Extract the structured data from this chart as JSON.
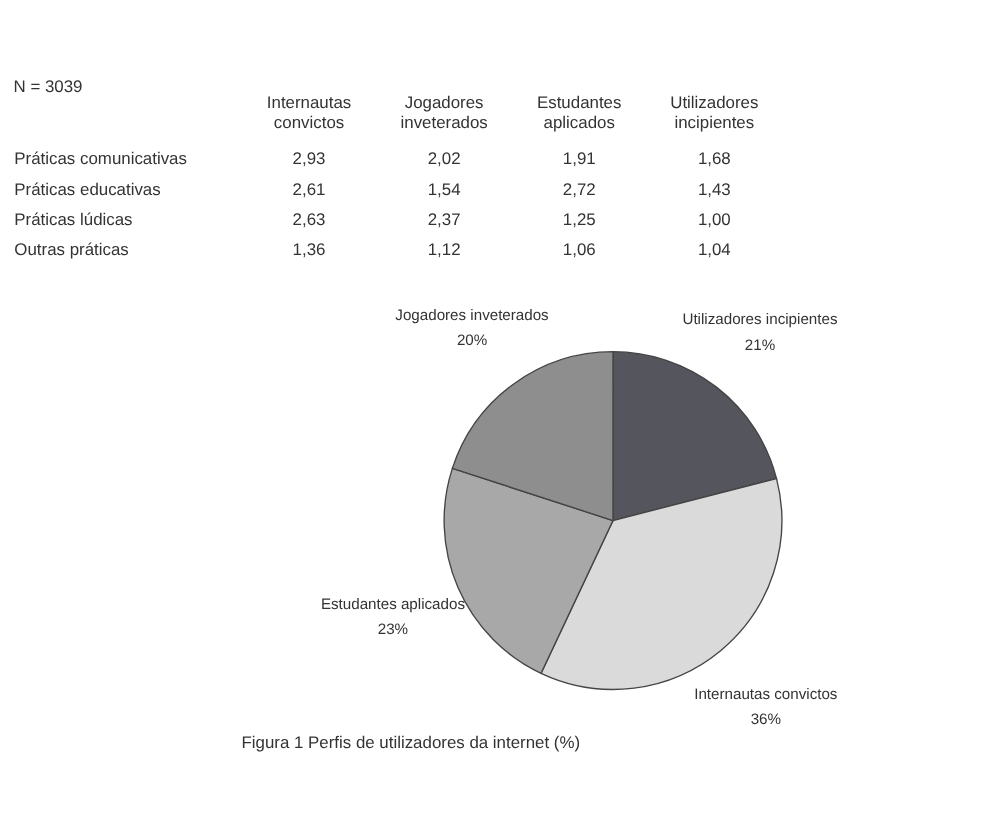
{
  "chart_data": [
    {
      "type": "other",
      "categories": [
        "Internautas convictos",
        "Jogadores inveterados",
        "Estudantes aplicados",
        "Utilizadores incipientes"
      ],
      "y_categories": [
        "Práticas comunicativas",
        "Práticas educativas",
        "Práticas lúdicas",
        "Outras práticas"
      ],
      "cell_labels": [
        [
          "2,93",
          "2,02",
          "1,91",
          "1,68"
        ],
        [
          "2,61",
          "1,54",
          "2,72",
          "1,43"
        ],
        [
          "2,63",
          "2,37",
          "1,25",
          "1,00"
        ],
        [
          "1,36",
          "1,12",
          "1,06",
          "1,04"
        ]
      ],
      "annotations": [
        "N = 3039"
      ]
    },
    {
      "type": "pie",
      "title": "Figura 1     Perfis de utilizadores da internet (%)",
      "categories": [
        "Utilizadores incipientes",
        "Internautas convictos",
        "Estudantes aplicados",
        "Jogadores inveterados"
      ],
      "values": [
        21,
        36,
        23,
        20
      ],
      "value_labels": [
        "21%",
        "36%",
        "23%",
        "20%"
      ],
      "colors": [
        "#55555d",
        "#dadada",
        "#a8a8a8",
        "#8e8e8e"
      ],
      "legend": false
    }
  ]
}
